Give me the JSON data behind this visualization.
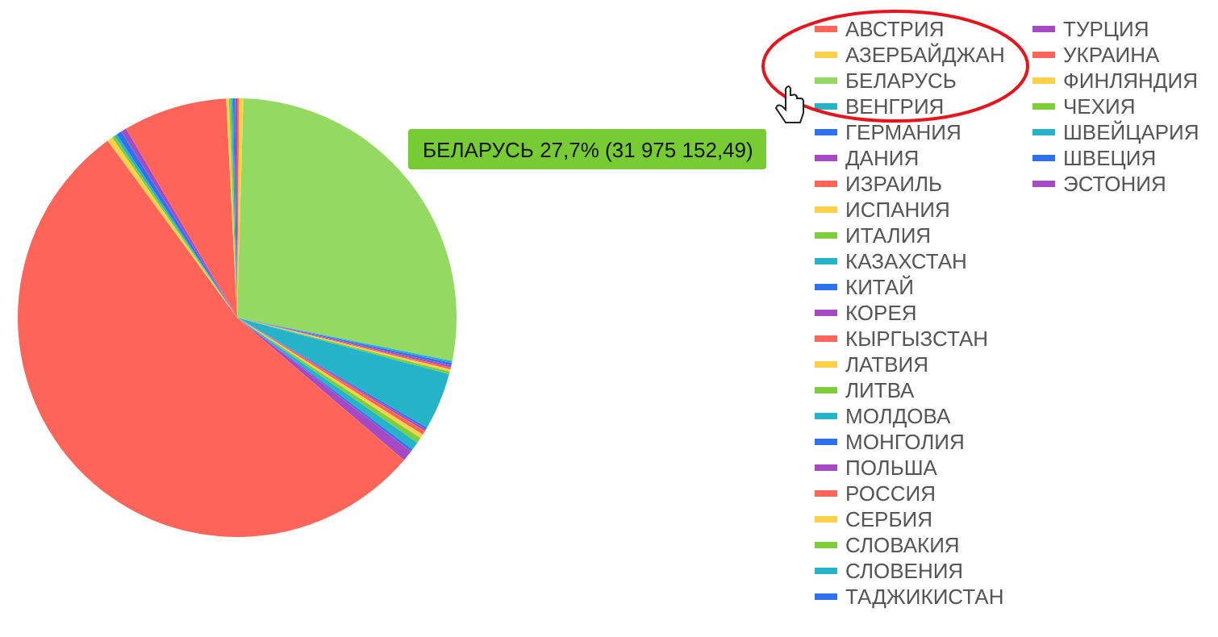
{
  "chart_data": {
    "type": "pie",
    "categories": [
      "АВСТРИЯ",
      "АЗЕРБАЙДЖАН",
      "БЕЛАРУСЬ",
      "ВЕНГРИЯ",
      "ГЕРМАНИЯ",
      "ДАНИЯ",
      "ИЗРАИЛЬ",
      "ИСПАНИЯ",
      "ИТАЛИЯ",
      "КАЗАХСТАН",
      "КИТАЙ",
      "КОРЕЯ",
      "КЫРГЫЗСТАН",
      "ЛАТВИЯ",
      "ЛИТВА",
      "МОЛДОВА",
      "МОНГОЛИЯ",
      "ПОЛЬША",
      "РОССИЯ",
      "СЕРБИЯ",
      "СЛОВАКИЯ",
      "СЛОВЕНИЯ",
      "ТАДЖИКИСТАН",
      "ТУРЦИЯ",
      "УКРАИНА",
      "ФИНЛЯНДИЯ",
      "ЧЕХИЯ",
      "ШВЕЙЦАРИЯ",
      "ШВЕЦИЯ",
      "ЭСТОНИЯ"
    ],
    "values": [
      0.15,
      0.3,
      27.7,
      0.15,
      0.2,
      0.15,
      0.15,
      0.15,
      0.2,
      4.2,
      0.15,
      0.15,
      0.3,
      0.3,
      0.4,
      0.6,
      0.2,
      0.8,
      53.7,
      0.4,
      0.2,
      0.2,
      0.4,
      0.4,
      7.65,
      0.2,
      0.15,
      0.15,
      0.15,
      0.15
    ],
    "colors": [
      "#ff6459",
      "#ffd147",
      "#94da62",
      "#25b3c7",
      "#2f72ee",
      "#a54ac2",
      "#ff6459",
      "#ffd147",
      "#7dcf3a",
      "#25b3c7",
      "#2f72ee",
      "#a54ac2",
      "#ff6459",
      "#ffd147",
      "#7dcf3a",
      "#25b3c7",
      "#2f72ee",
      "#a54ac2",
      "#ff6459",
      "#ffd147",
      "#7dcf3a",
      "#25b3c7",
      "#2f72ee",
      "#a54ac2",
      "#ff6459",
      "#ffd147",
      "#7dcf3a",
      "#25b3c7",
      "#2f72ee",
      "#a54ac2"
    ],
    "legend": "right",
    "annotations": [
      "БЕЛАРУСЬ 27,7% (31 975 152,49)"
    ]
  }
}
